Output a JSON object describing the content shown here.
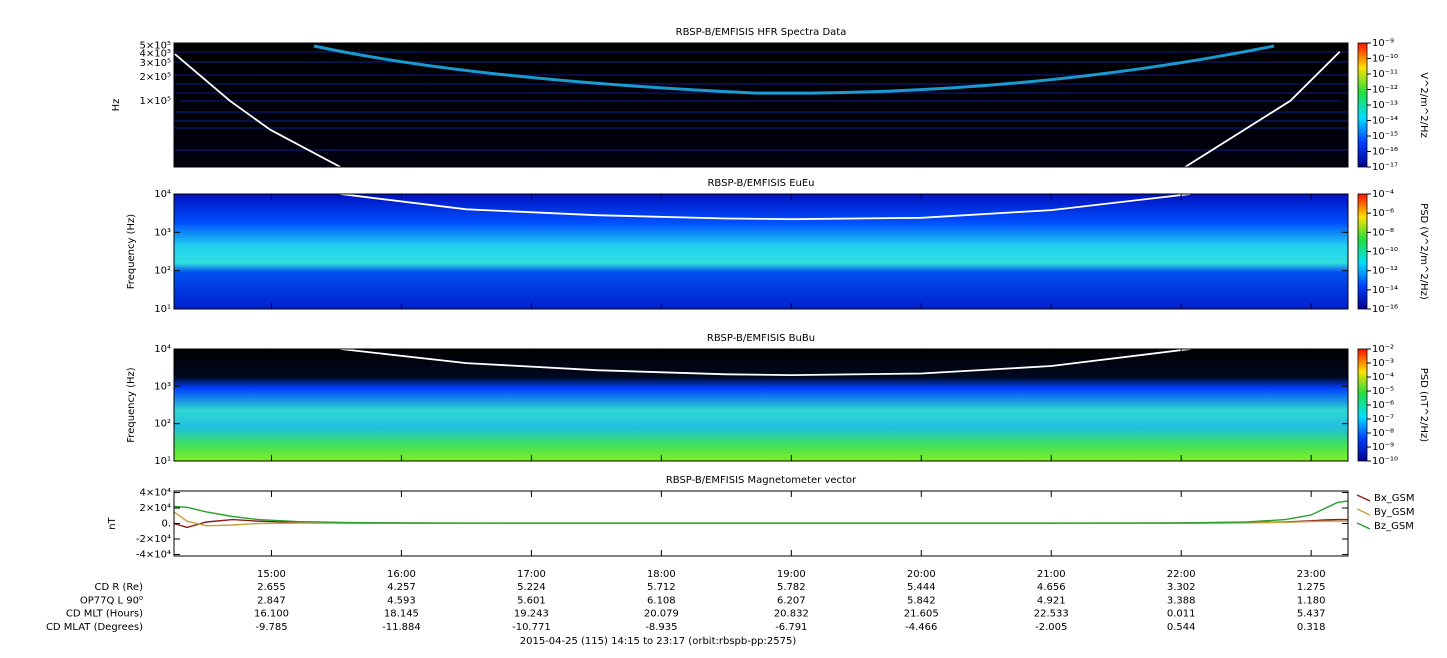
{
  "chart_data": [
    {
      "type": "spectrogram",
      "title": "RBSP-B/EMFISIS  HFR Spectra Data",
      "ylabel": "Hz",
      "log": true,
      "ylim": [
        14500,
        540000
      ],
      "yticks": [
        {
          "value": 100000,
          "label": "1×10⁵"
        },
        {
          "value": 200000,
          "label": "2×10⁵"
        },
        {
          "value": 300000,
          "label": "3×10⁵"
        },
        {
          "value": 400000,
          "label": "4×10⁵"
        },
        {
          "value": 500000,
          "label": "5×10⁵"
        }
      ],
      "colorbar": {
        "label": "V^2/m^2/Hz",
        "lim": [
          1e-17,
          1e-09
        ],
        "ticks": [
          {
            "value": 1e-09,
            "label": "10⁻⁹"
          },
          {
            "value": 1e-10,
            "label": "10⁻¹⁰"
          },
          {
            "value": 1e-11,
            "label": "10⁻¹¹"
          },
          {
            "value": 1e-12,
            "label": "10⁻¹²"
          },
          {
            "value": 1e-13,
            "label": "10⁻¹³"
          },
          {
            "value": 1e-14,
            "label": "10⁻¹⁴"
          },
          {
            "value": 1e-15,
            "label": "10⁻¹⁵"
          },
          {
            "value": 1e-16,
            "label": "10⁻¹⁶"
          },
          {
            "value": 1e-17,
            "label": "10⁻¹⁷"
          }
        ]
      },
      "curve": {
        "color": "#ffffff",
        "x": [
          14.25,
          14.68,
          14.99,
          15.53,
          19.0,
          22.03,
          22.84,
          23.22
        ],
        "values": [
          400000,
          100000,
          43000,
          14500,
          null,
          14500,
          100000,
          420000
        ]
      }
    },
    {
      "type": "spectrogram",
      "title": "RBSP-B/EMFISIS  EuEu",
      "ylabel": "Frequency (Hz)",
      "log": true,
      "ylim": [
        10,
        10000
      ],
      "yticks": [
        {
          "value": 10,
          "label": "10¹"
        },
        {
          "value": 100,
          "label": "10²"
        },
        {
          "value": 1000,
          "label": "10³"
        },
        {
          "value": 10000,
          "label": "10⁴"
        }
      ],
      "colorbar": {
        "label": "PSD (V^2/m^2/Hz)",
        "lim": [
          1e-16,
          0.0001
        ],
        "ticks": [
          {
            "value": 0.0001,
            "label": "10⁻⁴"
          },
          {
            "value": 1e-06,
            "label": "10⁻⁶"
          },
          {
            "value": 1e-08,
            "label": "10⁻⁸"
          },
          {
            "value": 1e-10,
            "label": "10⁻¹⁰"
          },
          {
            "value": 1e-12,
            "label": "10⁻¹²"
          },
          {
            "value": 1e-14,
            "label": "10⁻¹⁴"
          },
          {
            "value": 1e-16,
            "label": "10⁻¹⁶"
          }
        ]
      },
      "curve": {
        "color": "#ffffff",
        "x": [
          15.53,
          16.5,
          17.5,
          18.5,
          19.0,
          20.0,
          21.0,
          22.07
        ],
        "values": [
          10000,
          4000,
          2800,
          2300,
          2200,
          2400,
          3800,
          10000
        ]
      }
    },
    {
      "type": "spectrogram",
      "title": "RBSP-B/EMFISIS  BuBu",
      "ylabel": "Frequency (Hz)",
      "log": true,
      "ylim": [
        10,
        10000
      ],
      "yticks": [
        {
          "value": 10,
          "label": "10¹"
        },
        {
          "value": 100,
          "label": "10²"
        },
        {
          "value": 1000,
          "label": "10³"
        },
        {
          "value": 10000,
          "label": "10⁴"
        }
      ],
      "colorbar": {
        "label": "PSD (nT^2/Hz)",
        "lim": [
          1e-10,
          0.01
        ],
        "ticks": [
          {
            "value": 0.01,
            "label": "10⁻²"
          },
          {
            "value": 0.001,
            "label": "10⁻³"
          },
          {
            "value": 0.0001,
            "label": "10⁻⁴"
          },
          {
            "value": 1e-05,
            "label": "10⁻⁵"
          },
          {
            "value": 1e-06,
            "label": "10⁻⁶"
          },
          {
            "value": 1e-07,
            "label": "10⁻⁷"
          },
          {
            "value": 1e-08,
            "label": "10⁻⁸"
          },
          {
            "value": 1e-09,
            "label": "10⁻⁹"
          },
          {
            "value": 1e-10,
            "label": "10⁻¹⁰"
          }
        ]
      },
      "curve": {
        "color": "#ffffff",
        "x": [
          15.53,
          16.5,
          17.5,
          18.5,
          19.0,
          20.0,
          21.0,
          22.07
        ],
        "values": [
          10000,
          4200,
          2700,
          2100,
          2000,
          2200,
          3500,
          10000
        ]
      }
    },
    {
      "type": "line",
      "title": "RBSP-B/EMFISIS  Magnetometer vector",
      "ylabel": "nT",
      "ylim": [
        -42000,
        42000
      ],
      "yticks": [
        {
          "value": -40000,
          "label": "-4×10⁴"
        },
        {
          "value": -20000,
          "label": "-2×10⁴"
        },
        {
          "value": 0,
          "label": "0."
        },
        {
          "value": 20000,
          "label": "2×10⁴"
        },
        {
          "value": 40000,
          "label": "4×10⁴"
        }
      ],
      "x": [
        14.25,
        14.35,
        14.5,
        14.7,
        14.9,
        15.2,
        15.6,
        16,
        17,
        18,
        19,
        20,
        21,
        22,
        22.5,
        22.8,
        23,
        23.1,
        23.2,
        23.28
      ],
      "series": [
        {
          "name": "Bx_GSM",
          "color": "#8b1c1c",
          "values": [
            0,
            -5000,
            2000,
            5000,
            3000,
            1500,
            800,
            500,
            300,
            300,
            300,
            300,
            300,
            500,
            1000,
            2000,
            3500,
            4500,
            5000,
            5000
          ]
        },
        {
          "name": "By_GSM",
          "color": "#c8a03c",
          "values": [
            15000,
            3000,
            -3000,
            -2000,
            0,
            500,
            300,
            200,
            100,
            100,
            100,
            100,
            100,
            200,
            800,
            1500,
            2500,
            3000,
            3000,
            3000
          ]
        },
        {
          "name": "Bz_GSM",
          "color": "#2ca02c",
          "values": [
            22000,
            21000,
            15000,
            9000,
            5000,
            2500,
            1200,
            800,
            500,
            500,
            500,
            500,
            500,
            800,
            2000,
            5000,
            11000,
            19000,
            27000,
            29000
          ]
        }
      ]
    }
  ],
  "time_axis": {
    "xlim": [
      14.25,
      23.2833
    ],
    "xticks": [
      {
        "value": 15,
        "label": "15:00"
      },
      {
        "value": 16,
        "label": "16:00"
      },
      {
        "value": 17,
        "label": "17:00"
      },
      {
        "value": 18,
        "label": "18:00"
      },
      {
        "value": 19,
        "label": "19:00"
      },
      {
        "value": 20,
        "label": "20:00"
      },
      {
        "value": 21,
        "label": "21:00"
      },
      {
        "value": 22,
        "label": "22:00"
      },
      {
        "value": 23,
        "label": "23:00"
      }
    ]
  },
  "ephemeris": {
    "rows": [
      {
        "label": "CD R (Re)",
        "values": [
          "2.655",
          "4.257",
          "5.224",
          "5.712",
          "5.782",
          "5.444",
          "4.656",
          "3.302",
          "1.275"
        ]
      },
      {
        "label": "OP77Q L 90⁰",
        "values": [
          "2.847",
          "4.593",
          "5.601",
          "6.108",
          "6.207",
          "5.842",
          "4.921",
          "3.388",
          "1.180"
        ]
      },
      {
        "label": "CD MLT (Hours)",
        "values": [
          "16.100",
          "18.145",
          "19.243",
          "20.079",
          "20.832",
          "21.605",
          "22.533",
          "0.011",
          "5.437"
        ]
      },
      {
        "label": "CD MLAT (Degrees)",
        "values": [
          "-9.785",
          "-11.884",
          "-10.771",
          "-8.935",
          "-6.791",
          "-4.466",
          "-2.005",
          "0.544",
          "0.318"
        ]
      }
    ],
    "footer": "2015-04-25 (115) 14:15 to 23:17 (orbit:rbspb-pp:2575)"
  }
}
